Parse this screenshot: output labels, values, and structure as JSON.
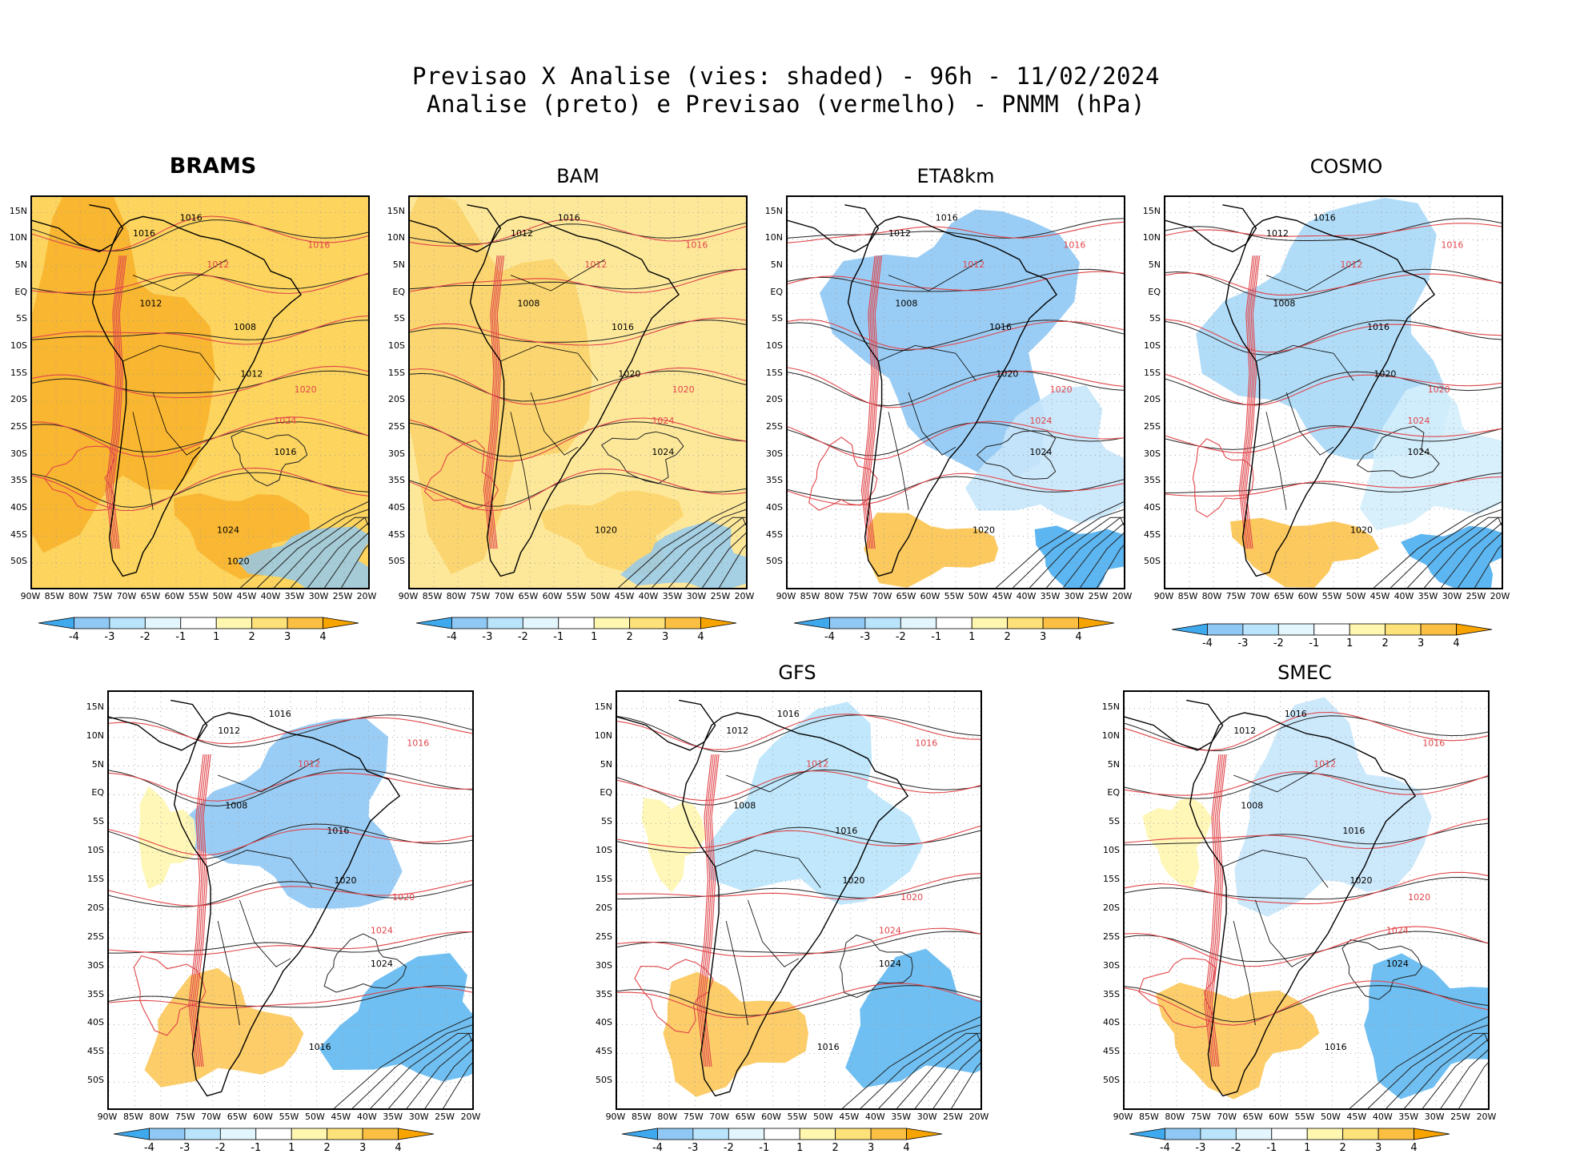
{
  "header": {
    "line1": "Previsao X Analise (vies: shaded) - 96h - 11/02/2024",
    "line2": "Analise (preto) e Previsao (vermelho) - PNMM (hPa)"
  },
  "axes": {
    "lat_labels": [
      "15N",
      "10N",
      "5N",
      "EQ",
      "5S",
      "10S",
      "15S",
      "20S",
      "25S",
      "30S",
      "35S",
      "40S",
      "45S",
      "50S"
    ],
    "lon_labels": [
      "90W",
      "85W",
      "80W",
      "75W",
      "70W",
      "65W",
      "60W",
      "55W",
      "50W",
      "45W",
      "40W",
      "35W",
      "30W",
      "25W",
      "20W"
    ]
  },
  "colorbar": {
    "labels": [
      "-4",
      "-3",
      "-2",
      "-1",
      "1",
      "2",
      "3",
      "4"
    ],
    "colors": [
      "#3fa9ee",
      "#8fc8f4",
      "#b9e4fb",
      "#e3f6fd",
      "#ffffff",
      "#fff6b0",
      "#fde27a",
      "#fbc043",
      "#f7a300"
    ]
  },
  "panels": [
    {
      "id": "brams",
      "title": "BRAMS",
      "bias": "warm",
      "fill": "#f8b22c",
      "fill_light": "#fcd45e",
      "analysis_labels": [
        "1016",
        "1016",
        "1012",
        "1008",
        "1012",
        "1016",
        "1024",
        "1020"
      ],
      "forecast_labels": [
        "1016",
        "1012",
        "1020",
        "1024"
      ]
    },
    {
      "id": "bam",
      "title": "BAM",
      "bias": "warm",
      "fill": "#fbd36a",
      "fill_light": "#fde89a",
      "analysis_labels": [
        "1016",
        "1012",
        "1008",
        "1016",
        "1020",
        "1024",
        "1020"
      ],
      "forecast_labels": [
        "1016",
        "1012",
        "1020",
        "1024"
      ]
    },
    {
      "id": "eta8km",
      "title": "ETA8km",
      "bias": "cold",
      "fill": "#8fc8f4",
      "fill_light": "#c6e6fb",
      "analysis_labels": [
        "1016",
        "1012",
        "1008",
        "1016",
        "1020",
        "1024",
        "1020"
      ],
      "forecast_labels": [
        "1016",
        "1012",
        "1020",
        "1024"
      ]
    },
    {
      "id": "cosmo",
      "title": "COSMO",
      "bias": "cold",
      "fill": "#a9d8f7",
      "fill_light": "#d4eefc",
      "analysis_labels": [
        "1016",
        "1012",
        "1008",
        "1016",
        "1020",
        "1024",
        "1020"
      ],
      "forecast_labels": [
        "1016",
        "1012",
        "1020",
        "1024"
      ]
    },
    {
      "id": "unnamed",
      "title": "",
      "bias": "mixed",
      "fill": "#8fc8f4",
      "fill_light": "#c6e6fb",
      "analysis_labels": [
        "1016",
        "1012",
        "1008",
        "1016",
        "1020",
        "1024",
        "1016"
      ],
      "forecast_labels": [
        "1016",
        "1012",
        "1020",
        "1024"
      ]
    },
    {
      "id": "gfs",
      "title": "GFS",
      "bias": "mixed",
      "fill": "#b9e4fb",
      "fill_light": "#e3f6fd",
      "analysis_labels": [
        "1016",
        "1012",
        "1008",
        "1016",
        "1020",
        "1024",
        "1016"
      ],
      "forecast_labels": [
        "1016",
        "1012",
        "1020",
        "1024"
      ]
    },
    {
      "id": "smec",
      "title": "SMEC",
      "bias": "mixed",
      "fill": "#c6e6fb",
      "fill_light": "#e3f6fd",
      "analysis_labels": [
        "1016",
        "1012",
        "1008",
        "1016",
        "1020",
        "1024",
        "1016"
      ],
      "forecast_labels": [
        "1016",
        "1012",
        "1020",
        "1024"
      ]
    }
  ]
}
